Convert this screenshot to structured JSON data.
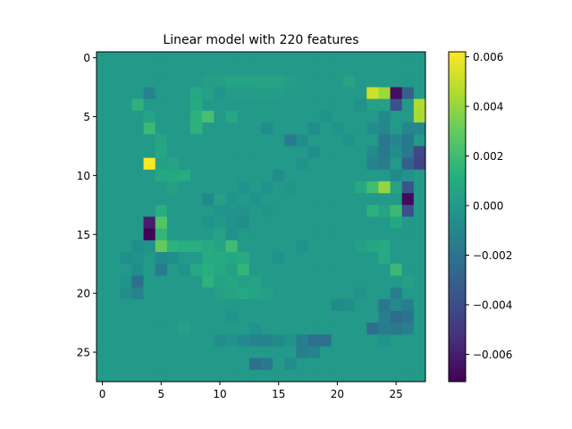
{
  "chart_data": {
    "type": "heatmap",
    "title": "Linear model with 220 features",
    "xlabel": "",
    "ylabel": "",
    "grid": false,
    "rows": 28,
    "cols": 28,
    "colormap": "viridis",
    "vmin": -0.0071,
    "vmax": 0.0062,
    "background_value": 0.0,
    "x_ticks": [
      0,
      5,
      10,
      15,
      20,
      25
    ],
    "y_ticks": [
      0,
      5,
      10,
      15,
      20,
      25
    ],
    "colorbar_ticks": [
      0.006,
      0.004,
      0.002,
      0.0,
      -0.002,
      -0.004,
      -0.006
    ],
    "colorbar_tick_labels": [
      "0.006",
      "0.004",
      "0.002",
      "0.000",
      "−0.002",
      "−0.004",
      "−0.006"
    ],
    "cells": [
      [
        2,
        9,
        0.0003
      ],
      [
        2,
        10,
        0.0003
      ],
      [
        2,
        11,
        0.0006
      ],
      [
        2,
        12,
        0.0006
      ],
      [
        2,
        13,
        0.0006
      ],
      [
        2,
        14,
        0.0006
      ],
      [
        2,
        15,
        0.0006
      ],
      [
        2,
        16,
        0.0003
      ],
      [
        2,
        21,
        0.0006
      ],
      [
        3,
        4,
        -0.0012
      ],
      [
        3,
        8,
        0.0008
      ],
      [
        3,
        9,
        0.0004
      ],
      [
        3,
        10,
        -0.0002
      ],
      [
        3,
        11,
        0.0002
      ],
      [
        3,
        12,
        0.0002
      ],
      [
        3,
        13,
        0.0002
      ],
      [
        3,
        14,
        0.0003
      ],
      [
        3,
        15,
        0.0003
      ],
      [
        3,
        23,
        0.0052
      ],
      [
        3,
        24,
        0.0042
      ],
      [
        3,
        25,
        -0.0066
      ],
      [
        3,
        26,
        -0.003
      ],
      [
        4,
        3,
        0.0014
      ],
      [
        4,
        8,
        0.001
      ],
      [
        4,
        22,
        -0.0004
      ],
      [
        4,
        23,
        0.0004
      ],
      [
        4,
        24,
        0.0004
      ],
      [
        4,
        25,
        -0.0038
      ],
      [
        4,
        27,
        0.0046
      ],
      [
        5,
        4,
        0.0006
      ],
      [
        5,
        8,
        0.0014
      ],
      [
        5,
        9,
        0.0022
      ],
      [
        5,
        11,
        0.0008
      ],
      [
        5,
        19,
        -0.0004
      ],
      [
        5,
        24,
        -0.0008
      ],
      [
        5,
        27,
        0.0044
      ],
      [
        6,
        4,
        0.0018
      ],
      [
        6,
        8,
        0.0014
      ],
      [
        6,
        14,
        -0.0006
      ],
      [
        6,
        18,
        -0.0006
      ],
      [
        6,
        20,
        -0.0004
      ],
      [
        6,
        23,
        -0.0006
      ],
      [
        6,
        24,
        -0.001
      ],
      [
        6,
        26,
        -0.001
      ],
      [
        6,
        27,
        -0.001
      ],
      [
        7,
        5,
        0.0006
      ],
      [
        7,
        16,
        -0.0016
      ],
      [
        7,
        17,
        -0.0006
      ],
      [
        7,
        21,
        -0.0004
      ],
      [
        7,
        24,
        -0.0018
      ],
      [
        7,
        25,
        -0.001
      ],
      [
        7,
        26,
        -0.0018
      ],
      [
        8,
        5,
        0.0008
      ],
      [
        8,
        18,
        -0.0006
      ],
      [
        8,
        23,
        -0.0008
      ],
      [
        8,
        24,
        -0.0018
      ],
      [
        8,
        25,
        -0.0006
      ],
      [
        8,
        26,
        -0.0018
      ],
      [
        8,
        27,
        -0.0042
      ],
      [
        9,
        4,
        0.0062
      ],
      [
        9,
        5,
        0.0004
      ],
      [
        9,
        6,
        0.0006
      ],
      [
        9,
        17,
        -0.0004
      ],
      [
        9,
        23,
        -0.0012
      ],
      [
        9,
        24,
        -0.0016
      ],
      [
        9,
        26,
        -0.003
      ],
      [
        9,
        27,
        -0.0044
      ],
      [
        10,
        5,
        0.0008
      ],
      [
        10,
        6,
        0.0008
      ],
      [
        10,
        7,
        0.001
      ],
      [
        10,
        15,
        -0.0006
      ],
      [
        10,
        25,
        -0.0008
      ],
      [
        10,
        26,
        -0.0004
      ],
      [
        11,
        6,
        0.0004
      ],
      [
        11,
        12,
        -0.0004
      ],
      [
        11,
        14,
        -0.0004
      ],
      [
        11,
        16,
        -0.0002
      ],
      [
        11,
        22,
        0.0008
      ],
      [
        11,
        23,
        0.002
      ],
      [
        11,
        24,
        0.004
      ],
      [
        11,
        25,
        0.0006
      ],
      [
        11,
        26,
        -0.0036
      ],
      [
        12,
        9,
        -0.0008
      ],
      [
        12,
        10,
        0.0004
      ],
      [
        12,
        11,
        -0.0002
      ],
      [
        12,
        13,
        -0.0004
      ],
      [
        12,
        26,
        -0.0068
      ],
      [
        13,
        5,
        0.0012
      ],
      [
        13,
        10,
        -0.0002
      ],
      [
        13,
        11,
        -0.0002
      ],
      [
        13,
        12,
        -0.0004
      ],
      [
        13,
        14,
        -0.0002
      ],
      [
        13,
        23,
        0.0014
      ],
      [
        13,
        24,
        0.0006
      ],
      [
        13,
        25,
        0.0018
      ],
      [
        13,
        26,
        -0.0038
      ],
      [
        14,
        4,
        -0.006
      ],
      [
        14,
        5,
        0.0026
      ],
      [
        14,
        9,
        -0.0004
      ],
      [
        14,
        11,
        -0.0004
      ],
      [
        14,
        12,
        -0.0006
      ],
      [
        14,
        25,
        0.0008
      ],
      [
        15,
        4,
        -0.007
      ],
      [
        15,
        5,
        0.0016
      ],
      [
        15,
        10,
        0.0006
      ],
      [
        15,
        11,
        -0.0004
      ],
      [
        16,
        3,
        -0.0006
      ],
      [
        16,
        4,
        -0.0004
      ],
      [
        16,
        5,
        0.003
      ],
      [
        16,
        6,
        0.0014
      ],
      [
        16,
        7,
        0.0012
      ],
      [
        16,
        8,
        0.0012
      ],
      [
        16,
        9,
        0.001
      ],
      [
        16,
        10,
        0.0006
      ],
      [
        16,
        11,
        0.002
      ],
      [
        16,
        17,
        -0.0004
      ],
      [
        16,
        22,
        0.0004
      ],
      [
        16,
        23,
        0.0008
      ],
      [
        16,
        24,
        0.001
      ],
      [
        17,
        2,
        -0.0006
      ],
      [
        17,
        3,
        -0.0004
      ],
      [
        17,
        5,
        -0.0008
      ],
      [
        17,
        6,
        -0.0006
      ],
      [
        17,
        9,
        0.001
      ],
      [
        17,
        10,
        0.001
      ],
      [
        17,
        11,
        0.0008
      ],
      [
        17,
        12,
        0.001
      ],
      [
        17,
        15,
        -0.0004
      ],
      [
        17,
        24,
        0.001
      ],
      [
        18,
        3,
        -0.0006
      ],
      [
        18,
        5,
        -0.0016
      ],
      [
        18,
        7,
        -0.0004
      ],
      [
        18,
        8,
        0.0008
      ],
      [
        18,
        9,
        0.0012
      ],
      [
        18,
        10,
        0.0008
      ],
      [
        18,
        11,
        0.0004
      ],
      [
        18,
        12,
        0.0016
      ],
      [
        18,
        25,
        0.0018
      ],
      [
        19,
        2,
        -0.0004
      ],
      [
        19,
        3,
        -0.0022
      ],
      [
        19,
        9,
        0.0014
      ],
      [
        19,
        10,
        0.0006
      ],
      [
        19,
        11,
        0.0008
      ],
      [
        19,
        12,
        0.0004
      ],
      [
        19,
        13,
        0.0006
      ],
      [
        19,
        26,
        0.0004
      ],
      [
        20,
        2,
        -0.0006
      ],
      [
        20,
        3,
        -0.0012
      ],
      [
        20,
        10,
        0.0004
      ],
      [
        20,
        11,
        0.0006
      ],
      [
        20,
        12,
        0.0008
      ],
      [
        20,
        13,
        0.0006
      ],
      [
        20,
        14,
        0.0004
      ],
      [
        20,
        22,
        -0.0004
      ],
      [
        20,
        25,
        -0.0014
      ],
      [
        21,
        20,
        -0.0008
      ],
      [
        21,
        21,
        -0.0006
      ],
      [
        21,
        24,
        -0.0018
      ],
      [
        21,
        25,
        -0.0008
      ],
      [
        21,
        26,
        -0.0014
      ],
      [
        22,
        11,
        -0.0004
      ],
      [
        22,
        24,
        -0.0014
      ],
      [
        22,
        25,
        -0.0024
      ],
      [
        22,
        26,
        -0.002
      ],
      [
        23,
        7,
        0.0004
      ],
      [
        23,
        13,
        -0.0004
      ],
      [
        23,
        23,
        -0.0022
      ],
      [
        23,
        24,
        -0.0016
      ],
      [
        23,
        25,
        -0.0018
      ],
      [
        23,
        26,
        -0.0014
      ],
      [
        24,
        10,
        -0.0006
      ],
      [
        24,
        11,
        -0.0004
      ],
      [
        24,
        12,
        -0.0008
      ],
      [
        24,
        13,
        -0.0012
      ],
      [
        24,
        14,
        -0.0012
      ],
      [
        24,
        15,
        -0.0008
      ],
      [
        24,
        16,
        -0.0004
      ],
      [
        24,
        17,
        -0.0014
      ],
      [
        24,
        18,
        -0.0022
      ],
      [
        24,
        19,
        -0.0022
      ],
      [
        24,
        24,
        -0.0004
      ],
      [
        25,
        17,
        -0.0014
      ],
      [
        25,
        18,
        -0.0012
      ],
      [
        26,
        13,
        -0.0022
      ],
      [
        26,
        14,
        -0.0018
      ],
      [
        26,
        16,
        -0.0006
      ]
    ]
  }
}
